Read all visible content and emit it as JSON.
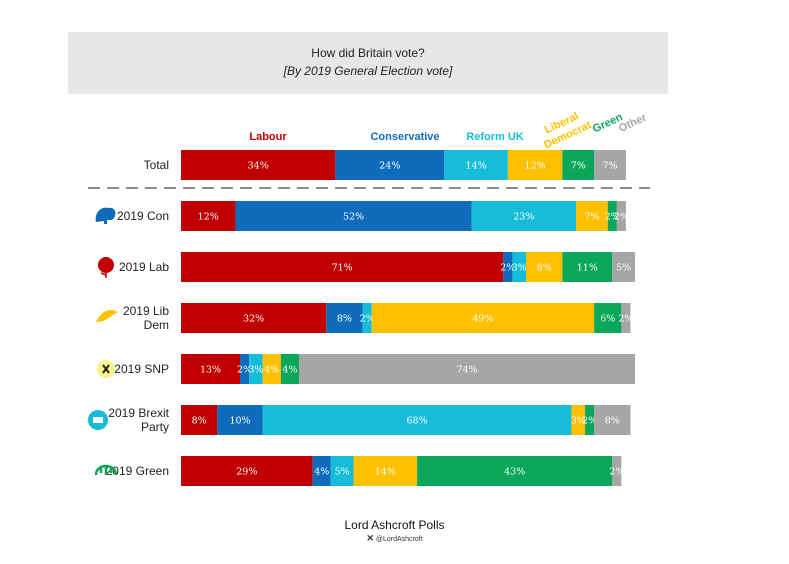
{
  "header": {
    "title": "How did Britain vote?",
    "subtitle": "[By 2019 General Election vote]"
  },
  "footer": {
    "source": "Lord Ashcroft Polls",
    "handle": "@LordAshcroft",
    "x_icon": "x-logo-icon"
  },
  "colors": {
    "Labour": "#c00000",
    "Conservative": "#0f6cbd",
    "Reform UK": "#17bcd9",
    "Liberal Democrat": "#ffc000",
    "Green": "#0aa75a",
    "Other": "#a6a6a6"
  },
  "chart_data": {
    "type": "bar",
    "stacked": true,
    "orientation": "horizontal",
    "xlim": [
      0,
      100
    ],
    "legend_position": "top",
    "categories": [
      "Total",
      "2019 Con",
      "2019 Lab",
      "2019 Lib Dem",
      "2019 SNP",
      "2019 Brexit Party",
      "2019 Green"
    ],
    "category_icons": [
      null,
      "conservative-tree-icon",
      "labour-rose-icon",
      "libdem-bird-icon",
      "snp-icon",
      "brexit-party-icon",
      "green-party-icon"
    ],
    "series": [
      {
        "name": "Labour",
        "values": [
          34,
          12,
          71,
          32,
          13,
          8,
          29
        ],
        "labels": [
          "34%",
          "12%",
          "71%",
          "32%",
          "13%",
          "8%",
          "29%"
        ]
      },
      {
        "name": "Conservative",
        "values": [
          24,
          52,
          2,
          8,
          2,
          10,
          4
        ],
        "labels": [
          "24%",
          "52%",
          "2%",
          "8%",
          "2%",
          "10%",
          "4%"
        ]
      },
      {
        "name": "Reform UK",
        "values": [
          14,
          23,
          3,
          2,
          3,
          68,
          5
        ],
        "labels": [
          "14%",
          "23%",
          "3%",
          "2%",
          "3%",
          "68%",
          "5%"
        ]
      },
      {
        "name": "Liberal Democrat",
        "values": [
          12,
          7,
          8,
          49,
          4,
          3,
          14
        ],
        "labels": [
          "12%",
          "7%",
          "8%",
          "49%",
          "4%",
          "3%",
          "14%"
        ]
      },
      {
        "name": "Green",
        "values": [
          7,
          2,
          11,
          6,
          4,
          2,
          43
        ],
        "labels": [
          "7%",
          "2%",
          "11%",
          "6%",
          "4%",
          "2%",
          "43%"
        ]
      },
      {
        "name": "Other",
        "values": [
          7,
          2,
          5,
          2,
          74,
          8,
          2
        ],
        "labels": [
          "7%",
          "2%",
          "5%",
          "2%",
          "74%",
          "8%",
          "2%"
        ]
      }
    ],
    "legend": [
      "Labour",
      "Conservative",
      "Reform UK",
      "Liberal Democrat",
      "Green",
      "Other"
    ],
    "legend_lines": [
      [
        "Labour"
      ],
      [
        "Conservative"
      ],
      [
        "Reform UK"
      ],
      [
        "Liberal",
        "Democrat"
      ],
      [
        "Green"
      ],
      [
        "Other"
      ]
    ],
    "separator_after": "Total"
  }
}
